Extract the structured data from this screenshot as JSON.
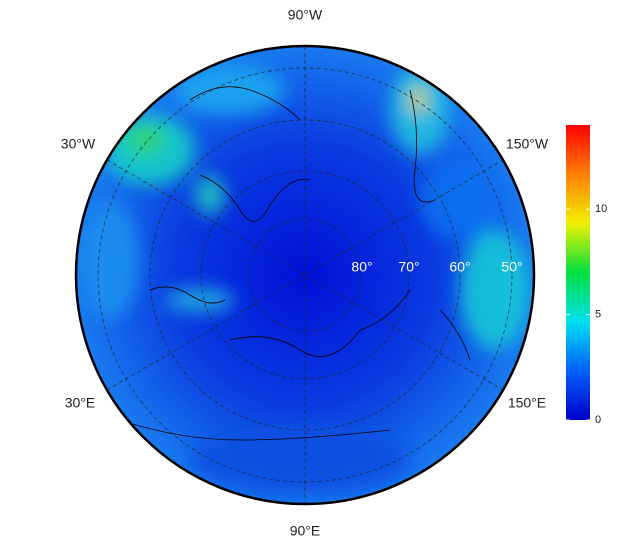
{
  "map": {
    "longitude_labels": [
      "90°W",
      "30°W",
      "150°W",
      "30°E",
      "150°E",
      "90°E"
    ],
    "latitude_labels": [
      "80°",
      "70°",
      "60°",
      "50°"
    ]
  },
  "colorbar": {
    "lim": [
      0,
      14
    ],
    "ticks": [
      0,
      5,
      10
    ],
    "colors": [
      "#0000c8",
      "#0060ff",
      "#00e0f0",
      "#00e040",
      "#f0f000",
      "#ff8000",
      "#ff0000"
    ]
  }
}
